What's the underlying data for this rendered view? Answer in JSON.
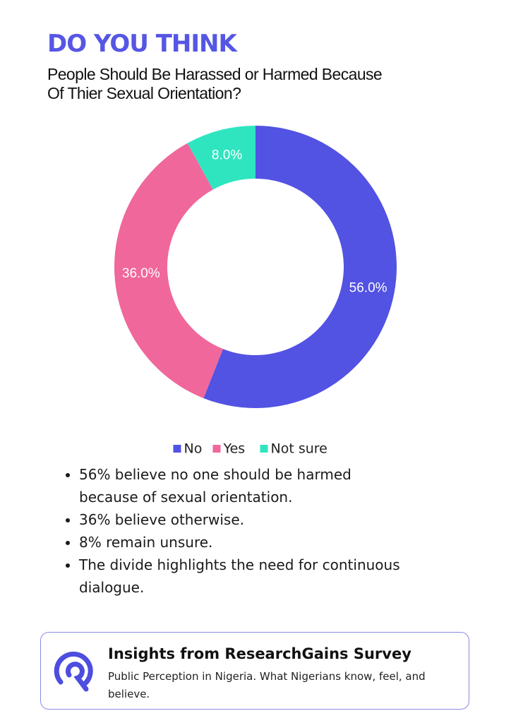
{
  "header": {
    "title": "DO YOU THINK",
    "subtitle": "People Should Be Harassed or Harmed Because Of Thier Sexual Orientation?"
  },
  "chart_data": {
    "type": "pie",
    "categories": [
      "No",
      "Yes",
      "Not sure"
    ],
    "values": [
      56,
      36,
      8
    ],
    "value_labels": [
      "56.0%",
      "36.0%",
      "8.0%"
    ],
    "colors": [
      "#5252e3",
      "#f0679b",
      "#2fe5c0"
    ],
    "legend": "bottom"
  },
  "notes": [
    "56% believe no one should be harmed because of sexual orientation.",
    "36% believe otherwise.",
    "8% remain unsure.",
    "The divide highlights the need for continuous dialogue."
  ],
  "footer": {
    "title": "Insights from ResearchGains Survey",
    "text": "Public Perception in Nigeria. What Nigerians know, feel, and believe."
  }
}
